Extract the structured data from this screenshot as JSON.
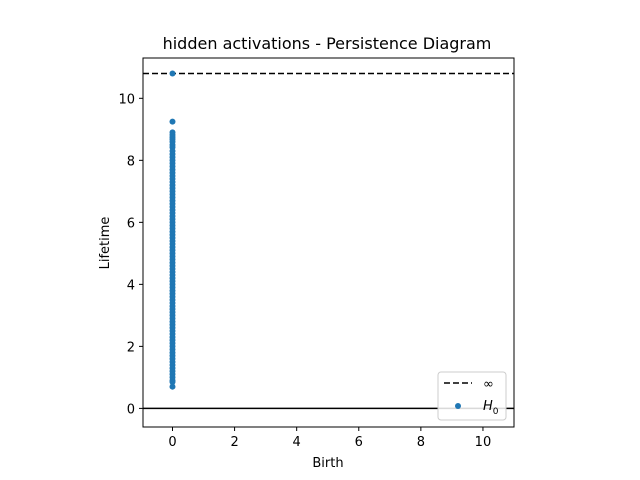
{
  "chart_data": {
    "type": "scatter",
    "title": "hidden activations - Persistence Diagram",
    "xlabel": "Birth",
    "ylabel": "Lifetime",
    "xlim": [
      -0.95,
      11.0
    ],
    "ylim": [
      -0.6,
      11.3
    ],
    "xticks": [
      0,
      2,
      4,
      6,
      8,
      10
    ],
    "yticks": [
      0,
      2,
      4,
      6,
      8,
      10
    ],
    "xtick_labels": [
      "0",
      "2",
      "4",
      "6",
      "8",
      "10"
    ],
    "ytick_labels": [
      "0",
      "2",
      "4",
      "6",
      "8",
      "10"
    ],
    "infinity_line": {
      "y": 10.8,
      "style": "dashed",
      "color": "#000000"
    },
    "baseline": {
      "y": 0,
      "color": "#000000"
    },
    "grid": false,
    "legend": {
      "placement": "lower-right",
      "entries": [
        {
          "label": "∞",
          "kind": "dashed-line",
          "color": "#000000"
        },
        {
          "label": "H",
          "subscript": "0",
          "kind": "marker",
          "color": "#1f77b4"
        }
      ]
    },
    "series": [
      {
        "name": "H0",
        "color": "#1f77b4",
        "points": [
          [
            0,
            10.8
          ],
          [
            0,
            9.25
          ],
          [
            0,
            8.9
          ],
          [
            0,
            8.82
          ],
          [
            0,
            8.75
          ],
          [
            0,
            8.68
          ],
          [
            0,
            8.6
          ],
          [
            0,
            8.5
          ],
          [
            0,
            8.42
          ],
          [
            0,
            8.3
          ],
          [
            0,
            8.2
          ],
          [
            0,
            8.1
          ],
          [
            0,
            8.0
          ],
          [
            0,
            7.9
          ],
          [
            0,
            7.8
          ],
          [
            0,
            7.7
          ],
          [
            0,
            7.6
          ],
          [
            0,
            7.5
          ],
          [
            0,
            7.4
          ],
          [
            0,
            7.3
          ],
          [
            0,
            7.2
          ],
          [
            0,
            7.1
          ],
          [
            0,
            7.0
          ],
          [
            0,
            6.9
          ],
          [
            0,
            6.8
          ],
          [
            0,
            6.7
          ],
          [
            0,
            6.6
          ],
          [
            0,
            6.5
          ],
          [
            0,
            6.4
          ],
          [
            0,
            6.3
          ],
          [
            0,
            6.2
          ],
          [
            0,
            6.1
          ],
          [
            0,
            6.0
          ],
          [
            0,
            5.9
          ],
          [
            0,
            5.8
          ],
          [
            0,
            5.7
          ],
          [
            0,
            5.6
          ],
          [
            0,
            5.5
          ],
          [
            0,
            5.4
          ],
          [
            0,
            5.3
          ],
          [
            0,
            5.2
          ],
          [
            0,
            5.1
          ],
          [
            0,
            5.0
          ],
          [
            0,
            4.9
          ],
          [
            0,
            4.8
          ],
          [
            0,
            4.7
          ],
          [
            0,
            4.6
          ],
          [
            0,
            4.5
          ],
          [
            0,
            4.4
          ],
          [
            0,
            4.3
          ],
          [
            0,
            4.2
          ],
          [
            0,
            4.1
          ],
          [
            0,
            4.0
          ],
          [
            0,
            3.9
          ],
          [
            0,
            3.8
          ],
          [
            0,
            3.7
          ],
          [
            0,
            3.6
          ],
          [
            0,
            3.5
          ],
          [
            0,
            3.4
          ],
          [
            0,
            3.3
          ],
          [
            0,
            3.2
          ],
          [
            0,
            3.1
          ],
          [
            0,
            3.0
          ],
          [
            0,
            2.9
          ],
          [
            0,
            2.8
          ],
          [
            0,
            2.7
          ],
          [
            0,
            2.6
          ],
          [
            0,
            2.5
          ],
          [
            0,
            2.4
          ],
          [
            0,
            2.3
          ],
          [
            0,
            2.2
          ],
          [
            0,
            2.1
          ],
          [
            0,
            2.0
          ],
          [
            0,
            1.9
          ],
          [
            0,
            1.8
          ],
          [
            0,
            1.7
          ],
          [
            0,
            1.6
          ],
          [
            0,
            1.5
          ],
          [
            0,
            1.4
          ],
          [
            0,
            1.3
          ],
          [
            0,
            1.2
          ],
          [
            0,
            1.1
          ],
          [
            0,
            1.0
          ],
          [
            0,
            0.9
          ],
          [
            0,
            0.85
          ],
          [
            0,
            0.7
          ]
        ]
      }
    ]
  }
}
